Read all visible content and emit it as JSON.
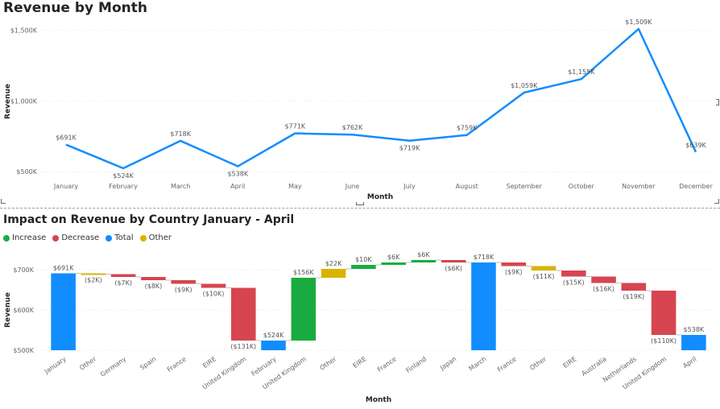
{
  "top": {
    "title": "Revenue by Month"
  },
  "bottom": {
    "title": "Impact on Revenue by Country January - April",
    "legend": [
      {
        "label": "Increase",
        "color": "#1aab40"
      },
      {
        "label": "Decrease",
        "color": "#d64550"
      },
      {
        "label": "Total",
        "color": "#118dff"
      },
      {
        "label": "Other",
        "color": "#d9b300"
      }
    ]
  },
  "chart_data": [
    {
      "type": "line",
      "title": "Revenue by Month",
      "xlabel": "Month",
      "ylabel": "Revenue",
      "categories": [
        "January",
        "February",
        "March",
        "April",
        "May",
        "June",
        "July",
        "August",
        "September",
        "October",
        "November",
        "December"
      ],
      "values": [
        691,
        524,
        718,
        538,
        771,
        762,
        719,
        759,
        1059,
        1155,
        1509,
        639
      ],
      "value_labels": [
        "$691K",
        "$524K",
        "$718K",
        "$538K",
        "$771K",
        "$762K",
        "$719K",
        "$759K",
        "$1,059K",
        "$1,155K",
        "$1,509K",
        "$639K"
      ],
      "ylim": [
        450,
        1600
      ],
      "yticks": [
        500,
        1000,
        1500
      ],
      "ytick_labels": [
        "$500K",
        "$1,000K",
        "$1,500K"
      ],
      "grid": true,
      "color": "#118dff"
    },
    {
      "type": "bar",
      "subtype": "waterfall",
      "title": "Impact on Revenue by Country January - April",
      "xlabel": "Month",
      "ylabel": "Revenue",
      "ylim": [
        500,
        720
      ],
      "yticks": [
        500,
        600,
        700
      ],
      "ytick_labels": [
        "$500K",
        "$600K",
        "$700K"
      ],
      "grid": true,
      "categories": [
        "January",
        "Other",
        "Germany",
        "Spain",
        "France",
        "EIRE",
        "United Kingdom",
        "February",
        "United Kingdom",
        "Other",
        "EIRE",
        "France",
        "Finland",
        "Japan",
        "March",
        "France",
        "Other",
        "EIRE",
        "Australia",
        "Netherlands",
        "United Kingdom",
        "April"
      ],
      "bars": [
        {
          "kind": "total",
          "start": 500,
          "end": 691,
          "label": "$691K"
        },
        {
          "kind": "other",
          "start": 691,
          "end": 689,
          "label": "($2K)"
        },
        {
          "kind": "decrease",
          "start": 689,
          "end": 682,
          "label": "($7K)"
        },
        {
          "kind": "decrease",
          "start": 682,
          "end": 674,
          "label": "($8K)"
        },
        {
          "kind": "decrease",
          "start": 674,
          "end": 665,
          "label": "($9K)"
        },
        {
          "kind": "decrease",
          "start": 665,
          "end": 655,
          "label": "($10K)"
        },
        {
          "kind": "decrease",
          "start": 655,
          "end": 524,
          "label": "($131K)"
        },
        {
          "kind": "total",
          "start": 500,
          "end": 524,
          "label": "$524K"
        },
        {
          "kind": "increase",
          "start": 524,
          "end": 680,
          "label": "$156K"
        },
        {
          "kind": "other",
          "start": 680,
          "end": 702,
          "label": "$22K"
        },
        {
          "kind": "increase",
          "start": 702,
          "end": 712,
          "label": "$10K"
        },
        {
          "kind": "increase",
          "start": 712,
          "end": 718,
          "label": "$6K"
        },
        {
          "kind": "increase",
          "start": 718,
          "end": 724,
          "label": "$6K"
        },
        {
          "kind": "decrease",
          "start": 724,
          "end": 718,
          "label": "($6K)"
        },
        {
          "kind": "total",
          "start": 500,
          "end": 718,
          "label": "$718K"
        },
        {
          "kind": "decrease",
          "start": 718,
          "end": 709,
          "label": "($9K)"
        },
        {
          "kind": "other",
          "start": 709,
          "end": 698,
          "label": "($11K)"
        },
        {
          "kind": "decrease",
          "start": 698,
          "end": 683,
          "label": "($15K)"
        },
        {
          "kind": "decrease",
          "start": 683,
          "end": 667,
          "label": "($16K)"
        },
        {
          "kind": "decrease",
          "start": 667,
          "end": 648,
          "label": "($19K)"
        },
        {
          "kind": "decrease",
          "start": 648,
          "end": 538,
          "label": "($110K)"
        },
        {
          "kind": "total",
          "start": 500,
          "end": 538,
          "label": "$538K"
        }
      ],
      "colors": {
        "increase": "#1aab40",
        "decrease": "#d64550",
        "total": "#118dff",
        "other": "#d9b300"
      }
    }
  ]
}
